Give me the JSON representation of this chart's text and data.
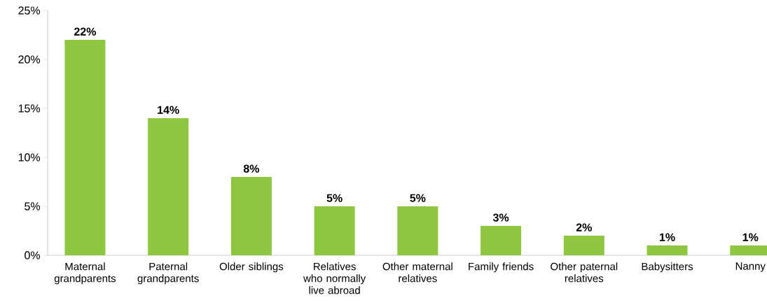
{
  "chart_data": {
    "type": "bar",
    "categories": [
      "Maternal grandparents",
      "Paternal grandparents",
      "Older siblings",
      "Relatives who normally live abroad",
      "Other maternal relatives",
      "Family friends",
      "Other paternal relatives",
      "Babysitters",
      "Nanny"
    ],
    "values": [
      22,
      14,
      8,
      5,
      5,
      3,
      2,
      1,
      1
    ],
    "value_labels": [
      "22%",
      "14%",
      "8%",
      "5%",
      "5%",
      "3%",
      "2%",
      "1%",
      "1%"
    ],
    "color": "#8dc63f",
    "ylim": [
      0,
      25
    ],
    "yticks": [
      {
        "value": 0,
        "label": "0%"
      },
      {
        "value": 5,
        "label": "5%"
      },
      {
        "value": 10,
        "label": "10%"
      },
      {
        "value": 15,
        "label": "15%"
      },
      {
        "value": 20,
        "label": "20%"
      },
      {
        "value": 25,
        "label": "25%"
      }
    ],
    "grid": false
  }
}
